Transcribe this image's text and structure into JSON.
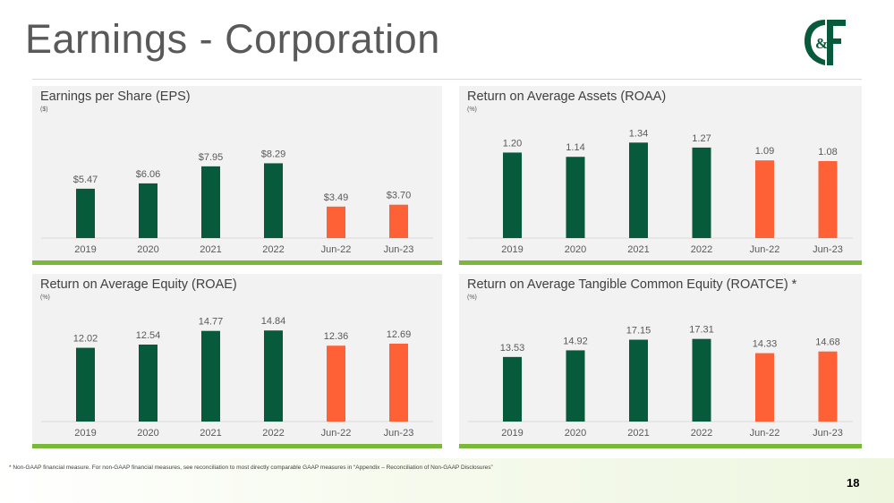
{
  "page": {
    "title": "Earnings - Corporation",
    "footnote": "* Non-GAAP financial measure.  For non-GAAP financial measures, see reconciliation to most directly comparable GAAP measures in “Appendix – Reconciliation of Non-GAAP Disclosures”",
    "page_number": "18",
    "logo_text": "C&F"
  },
  "colors": {
    "dark_green": "#075a3c",
    "orange": "#ff6137",
    "lime": "#7ab839",
    "label": "#595959"
  },
  "chart_data": [
    {
      "type": "bar",
      "title": "Earnings per Share (EPS)",
      "unit": "($)",
      "categories": [
        "2019",
        "2020",
        "2021",
        "2022",
        "Jun-22",
        "Jun-23"
      ],
      "values": [
        5.47,
        6.06,
        7.95,
        8.29,
        3.49,
        3.7
      ],
      "labels": [
        "$5.47",
        "$6.06",
        "$7.95",
        "$8.29",
        "$3.49",
        "$3.70"
      ],
      "ylim": [
        0,
        12.4
      ]
    },
    {
      "type": "bar",
      "title": "Return on Average Assets (ROAA)",
      "unit": "(%)",
      "categories": [
        "2019",
        "2020",
        "2021",
        "2022",
        "Jun-22",
        "Jun-23"
      ],
      "values": [
        1.2,
        1.14,
        1.34,
        1.27,
        1.09,
        1.08
      ],
      "labels": [
        "1.20",
        "1.14",
        "1.34",
        "1.27",
        "1.09",
        "1.08"
      ],
      "ylim": [
        0,
        1.57
      ]
    },
    {
      "type": "bar",
      "title": "Return on Average Equity (ROAE)",
      "unit": "(%)",
      "categories": [
        "2019",
        "2020",
        "2021",
        "2022",
        "Jun-22",
        "Jun-23"
      ],
      "values": [
        12.02,
        12.54,
        14.77,
        14.84,
        12.36,
        12.69
      ],
      "labels": [
        "12.02",
        "12.54",
        "14.77",
        "14.84",
        "12.36",
        "12.69"
      ],
      "ylim": [
        0,
        17.5
      ]
    },
    {
      "type": "bar",
      "title": "Return on Average Tangible Common Equity (ROATCE) *",
      "unit": "(%)",
      "categories": [
        "2019",
        "2020",
        "2021",
        "2022",
        "Jun-22",
        "Jun-23"
      ],
      "values": [
        13.53,
        14.92,
        17.15,
        17.31,
        14.33,
        14.68
      ],
      "labels": [
        "13.53",
        "14.92",
        "17.15",
        "17.31",
        "14.33",
        "14.68"
      ],
      "ylim": [
        0,
        22.5
      ]
    }
  ]
}
